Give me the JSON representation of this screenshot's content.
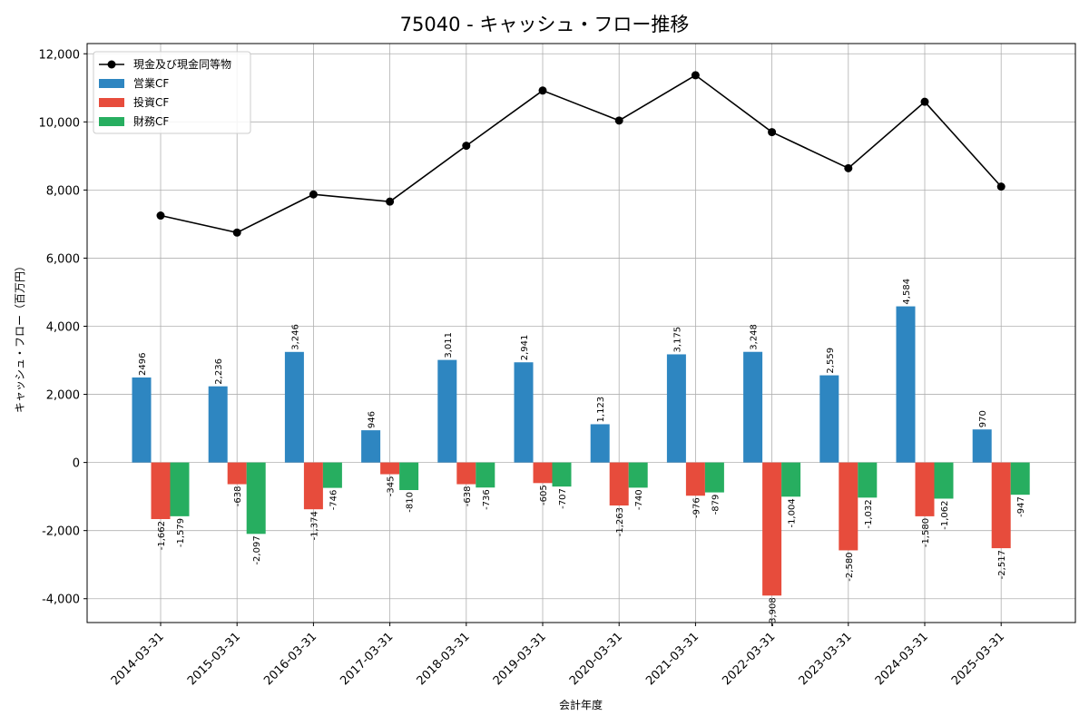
{
  "chart_data": {
    "type": "bar",
    "title": "75040 - キャッシュ・フロー推移",
    "xlabel": "会計年度",
    "ylabel": "キャッシュ・フロー（百万円）",
    "ylim": [
      -4700,
      12300
    ],
    "yticks": [
      -4000,
      -2000,
      0,
      2000,
      4000,
      6000,
      8000,
      10000,
      12000
    ],
    "ytick_labels": [
      "-4,000",
      "-2,000",
      "0",
      "2,000",
      "4,000",
      "6,000",
      "8,000",
      "10,000",
      "12,000"
    ],
    "grid": true,
    "legend_position": "top-left",
    "categories": [
      "2014-03-31",
      "2015-03-31",
      "2016-03-31",
      "2017-03-31",
      "2018-03-31",
      "2019-03-31",
      "2020-03-31",
      "2021-03-31",
      "2022-03-31",
      "2023-03-31",
      "2024-03-31",
      "2025-03-31"
    ],
    "series": [
      {
        "name": "営業CF",
        "type": "bar",
        "color": "#2e86c1",
        "values": [
          2496,
          2236,
          3246,
          946,
          3011,
          2941,
          1123,
          3175,
          3248,
          2559,
          4584,
          970
        ],
        "labels": [
          "2496",
          "2,236",
          "3,246",
          "946",
          "3,011",
          "2,941",
          "1,123",
          "3,175",
          "3,248",
          "2,559",
          "4,584",
          "970"
        ]
      },
      {
        "name": "投資CF",
        "type": "bar",
        "color": "#e74c3c",
        "values": [
          -1662,
          -638,
          -1374,
          -345,
          -638,
          -605,
          -1263,
          -976,
          -3908,
          -2580,
          -1580,
          -2517
        ],
        "labels": [
          "-1,662",
          "-638",
          "-1,374",
          "-345",
          "-638",
          "-605",
          "-1,263",
          "-976",
          "-3,908",
          "-2,580",
          "-1,580",
          "-2,517"
        ]
      },
      {
        "name": "財務CF",
        "type": "bar",
        "color": "#27ae60",
        "values": [
          -1579,
          -2097,
          -746,
          -810,
          -736,
          -707,
          -740,
          -879,
          -1004,
          -1032,
          -1062,
          -947
        ],
        "labels": [
          "-1,579",
          "-2,097",
          "-746",
          "-810",
          "-736",
          "-707",
          "-740",
          "-879",
          "-1,004",
          "-1,032",
          "-1,062",
          "-947"
        ]
      },
      {
        "name": "現金及び現金同等物",
        "type": "line",
        "color": "#000000",
        "values": [
          7250,
          6750,
          7870,
          7660,
          9300,
          10920,
          10040,
          11370,
          9700,
          8640,
          10590,
          8100
        ]
      }
    ]
  }
}
